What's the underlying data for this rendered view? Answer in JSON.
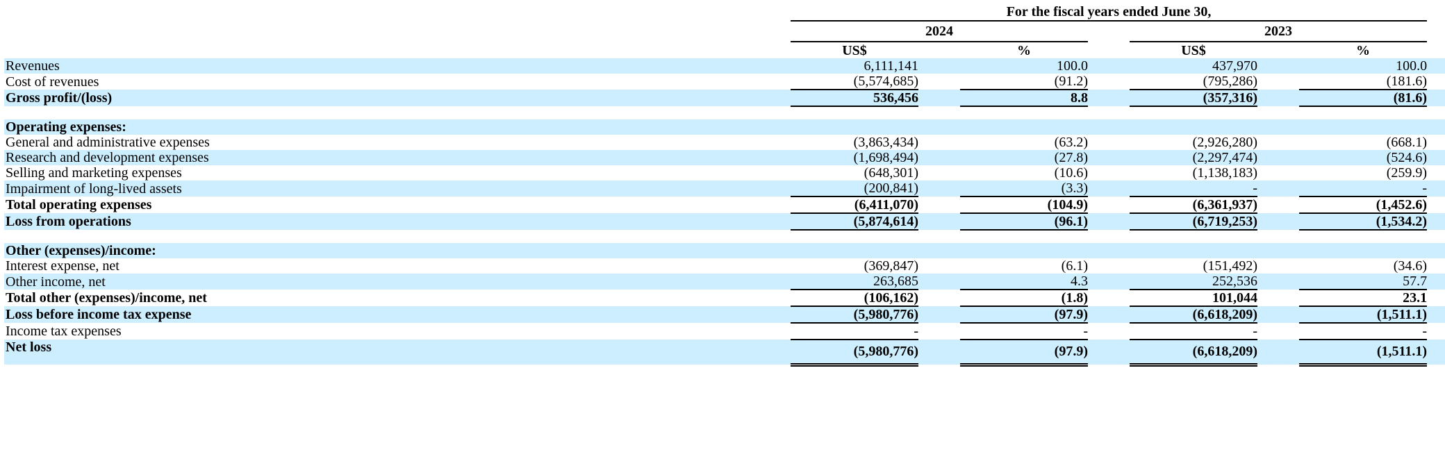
{
  "header": {
    "period": "For the fiscal years ended June 30,",
    "year_1": "2024",
    "year_2": "2023",
    "col_usd": "US$",
    "col_pct": "%"
  },
  "rows": {
    "revenues": {
      "label": "Revenues",
      "v2024": "6,111,141",
      "p2024": "100.0",
      "v2023": "437,970",
      "p2023": "100.0"
    },
    "cost_of_revenues": {
      "label": "Cost of revenues",
      "v2024": "(5,574,685)",
      "p2024": "(91.2)",
      "v2023": "(795,286)",
      "p2023": "(181.6)"
    },
    "gross_profit": {
      "label": "Gross profit/(loss)",
      "v2024": "536,456",
      "p2024": "8.8",
      "v2023": "(357,316)",
      "p2023": "(81.6)"
    },
    "operating_expenses_heading": {
      "label": "Operating expenses:"
    },
    "general_admin": {
      "label": "General and administrative expenses",
      "v2024": "(3,863,434)",
      "p2024": "(63.2)",
      "v2023": "(2,926,280)",
      "p2023": "(668.1)"
    },
    "research_dev": {
      "label": "Research and development expenses",
      "v2024": "(1,698,494)",
      "p2024": "(27.8)",
      "v2023": "(2,297,474)",
      "p2023": "(524.6)"
    },
    "selling_marketing": {
      "label": "Selling and marketing expenses",
      "v2024": "(648,301)",
      "p2024": "(10.6)",
      "v2023": "(1,138,183)",
      "p2023": "(259.9)"
    },
    "impairment": {
      "label": "Impairment of long-lived assets",
      "v2024": "(200,841)",
      "p2024": "(3.3)",
      "v2023": "-",
      "p2023": "-"
    },
    "total_operating": {
      "label": "Total operating expenses",
      "v2024": "(6,411,070)",
      "p2024": "(104.9)",
      "v2023": "(6,361,937)",
      "p2023": "(1,452.6)"
    },
    "loss_from_operations": {
      "label": "Loss from operations",
      "v2024": "(5,874,614)",
      "p2024": "(96.1)",
      "v2023": "(6,719,253)",
      "p2023": "(1,534.2)"
    },
    "other_heading": {
      "label": "Other (expenses)/income:"
    },
    "interest_expense": {
      "label": "Interest expense, net",
      "v2024": "(369,847)",
      "p2024": "(6.1)",
      "v2023": "(151,492)",
      "p2023": "(34.6)"
    },
    "other_income": {
      "label": "Other income, net",
      "v2024": "263,685",
      "p2024": "4.3",
      "v2023": "252,536",
      "p2023": "57.7"
    },
    "total_other": {
      "label": "Total other (expenses)/income, net",
      "v2024": "(106,162)",
      "p2024": "(1.8)",
      "v2023": "101,044",
      "p2023": "23.1"
    },
    "loss_before_tax": {
      "label": "Loss before income tax expense",
      "v2024": "(5,980,776)",
      "p2024": "(97.9)",
      "v2023": "(6,618,209)",
      "p2023": "(1,511.1)"
    },
    "income_tax": {
      "label": "Income tax expenses",
      "v2024": "-",
      "p2024": "-",
      "v2023": "-",
      "p2023": "-"
    },
    "net_loss": {
      "label": "Net loss",
      "v2024": "(5,980,776)",
      "p2024": "(97.9)",
      "v2023": "(6,618,209)",
      "p2023": "(1,511.1)"
    }
  }
}
